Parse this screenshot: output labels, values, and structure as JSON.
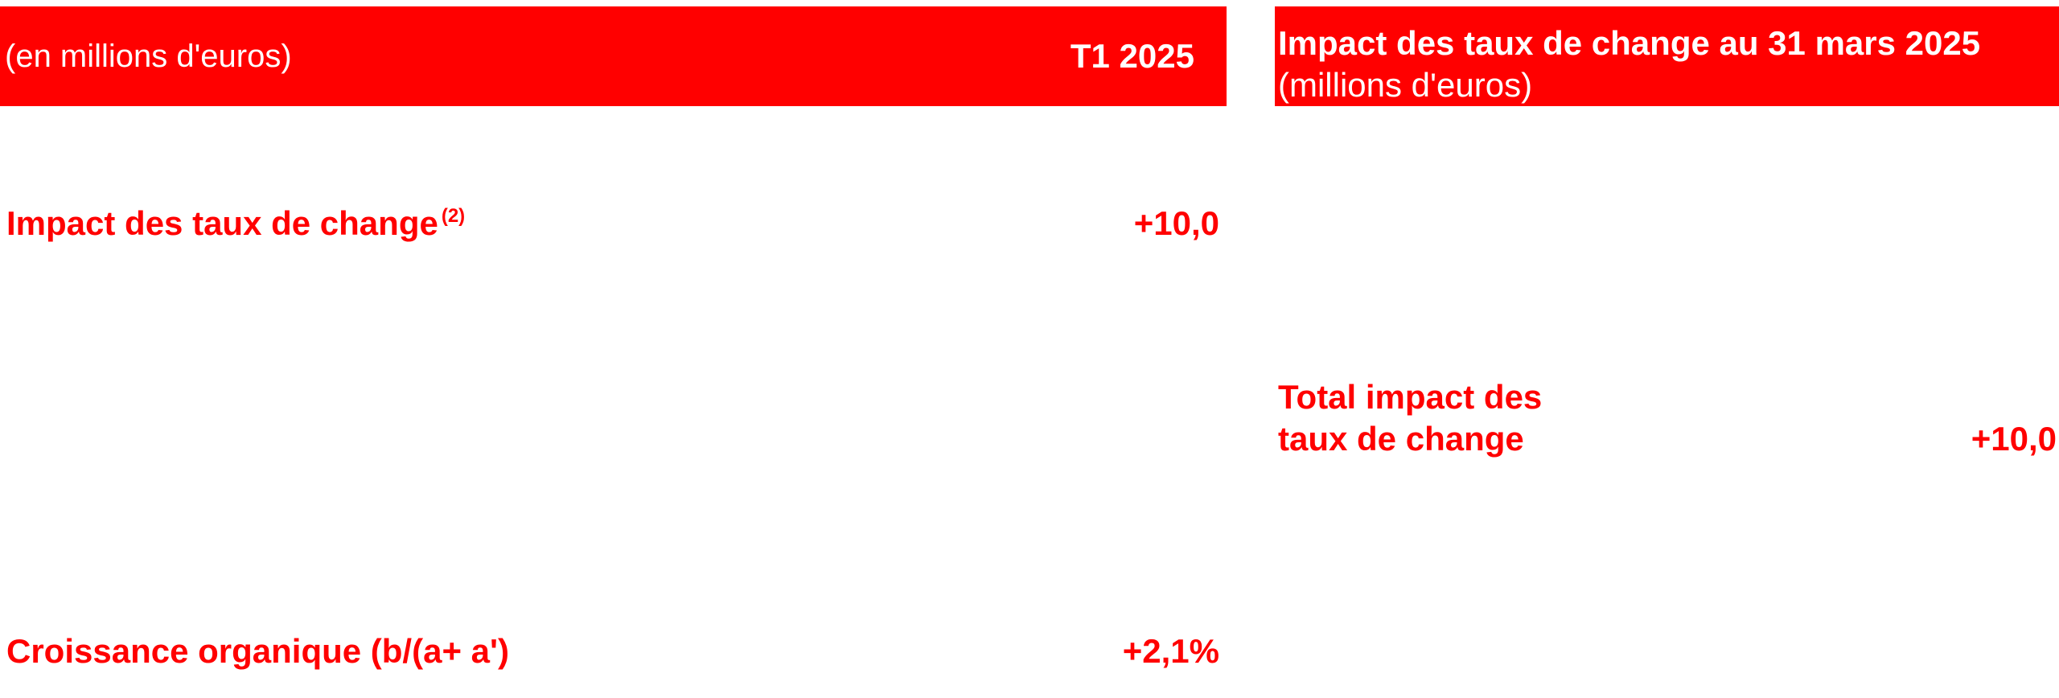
{
  "left_table": {
    "header_label": "(en millions d'euros)",
    "header_period": "T1 2025",
    "rows": [
      {
        "label": "Impact des taux de change",
        "note": "(2)",
        "value": "+10,0"
      },
      {
        "label": "Croissance organique (b/(a+ a')",
        "value": "+2,1%"
      }
    ]
  },
  "right_table": {
    "header_title_bold": "Impact des taux de change au 31 mars 2025",
    "header_title_normal": "(millions d'euros)",
    "total_label_line1": "Total impact des",
    "total_label_line2": "taux de change",
    "total_value": "+10,0"
  },
  "colors": {
    "accent": "#ff0000",
    "header_text": "#ffffff",
    "background": "#ffffff"
  }
}
